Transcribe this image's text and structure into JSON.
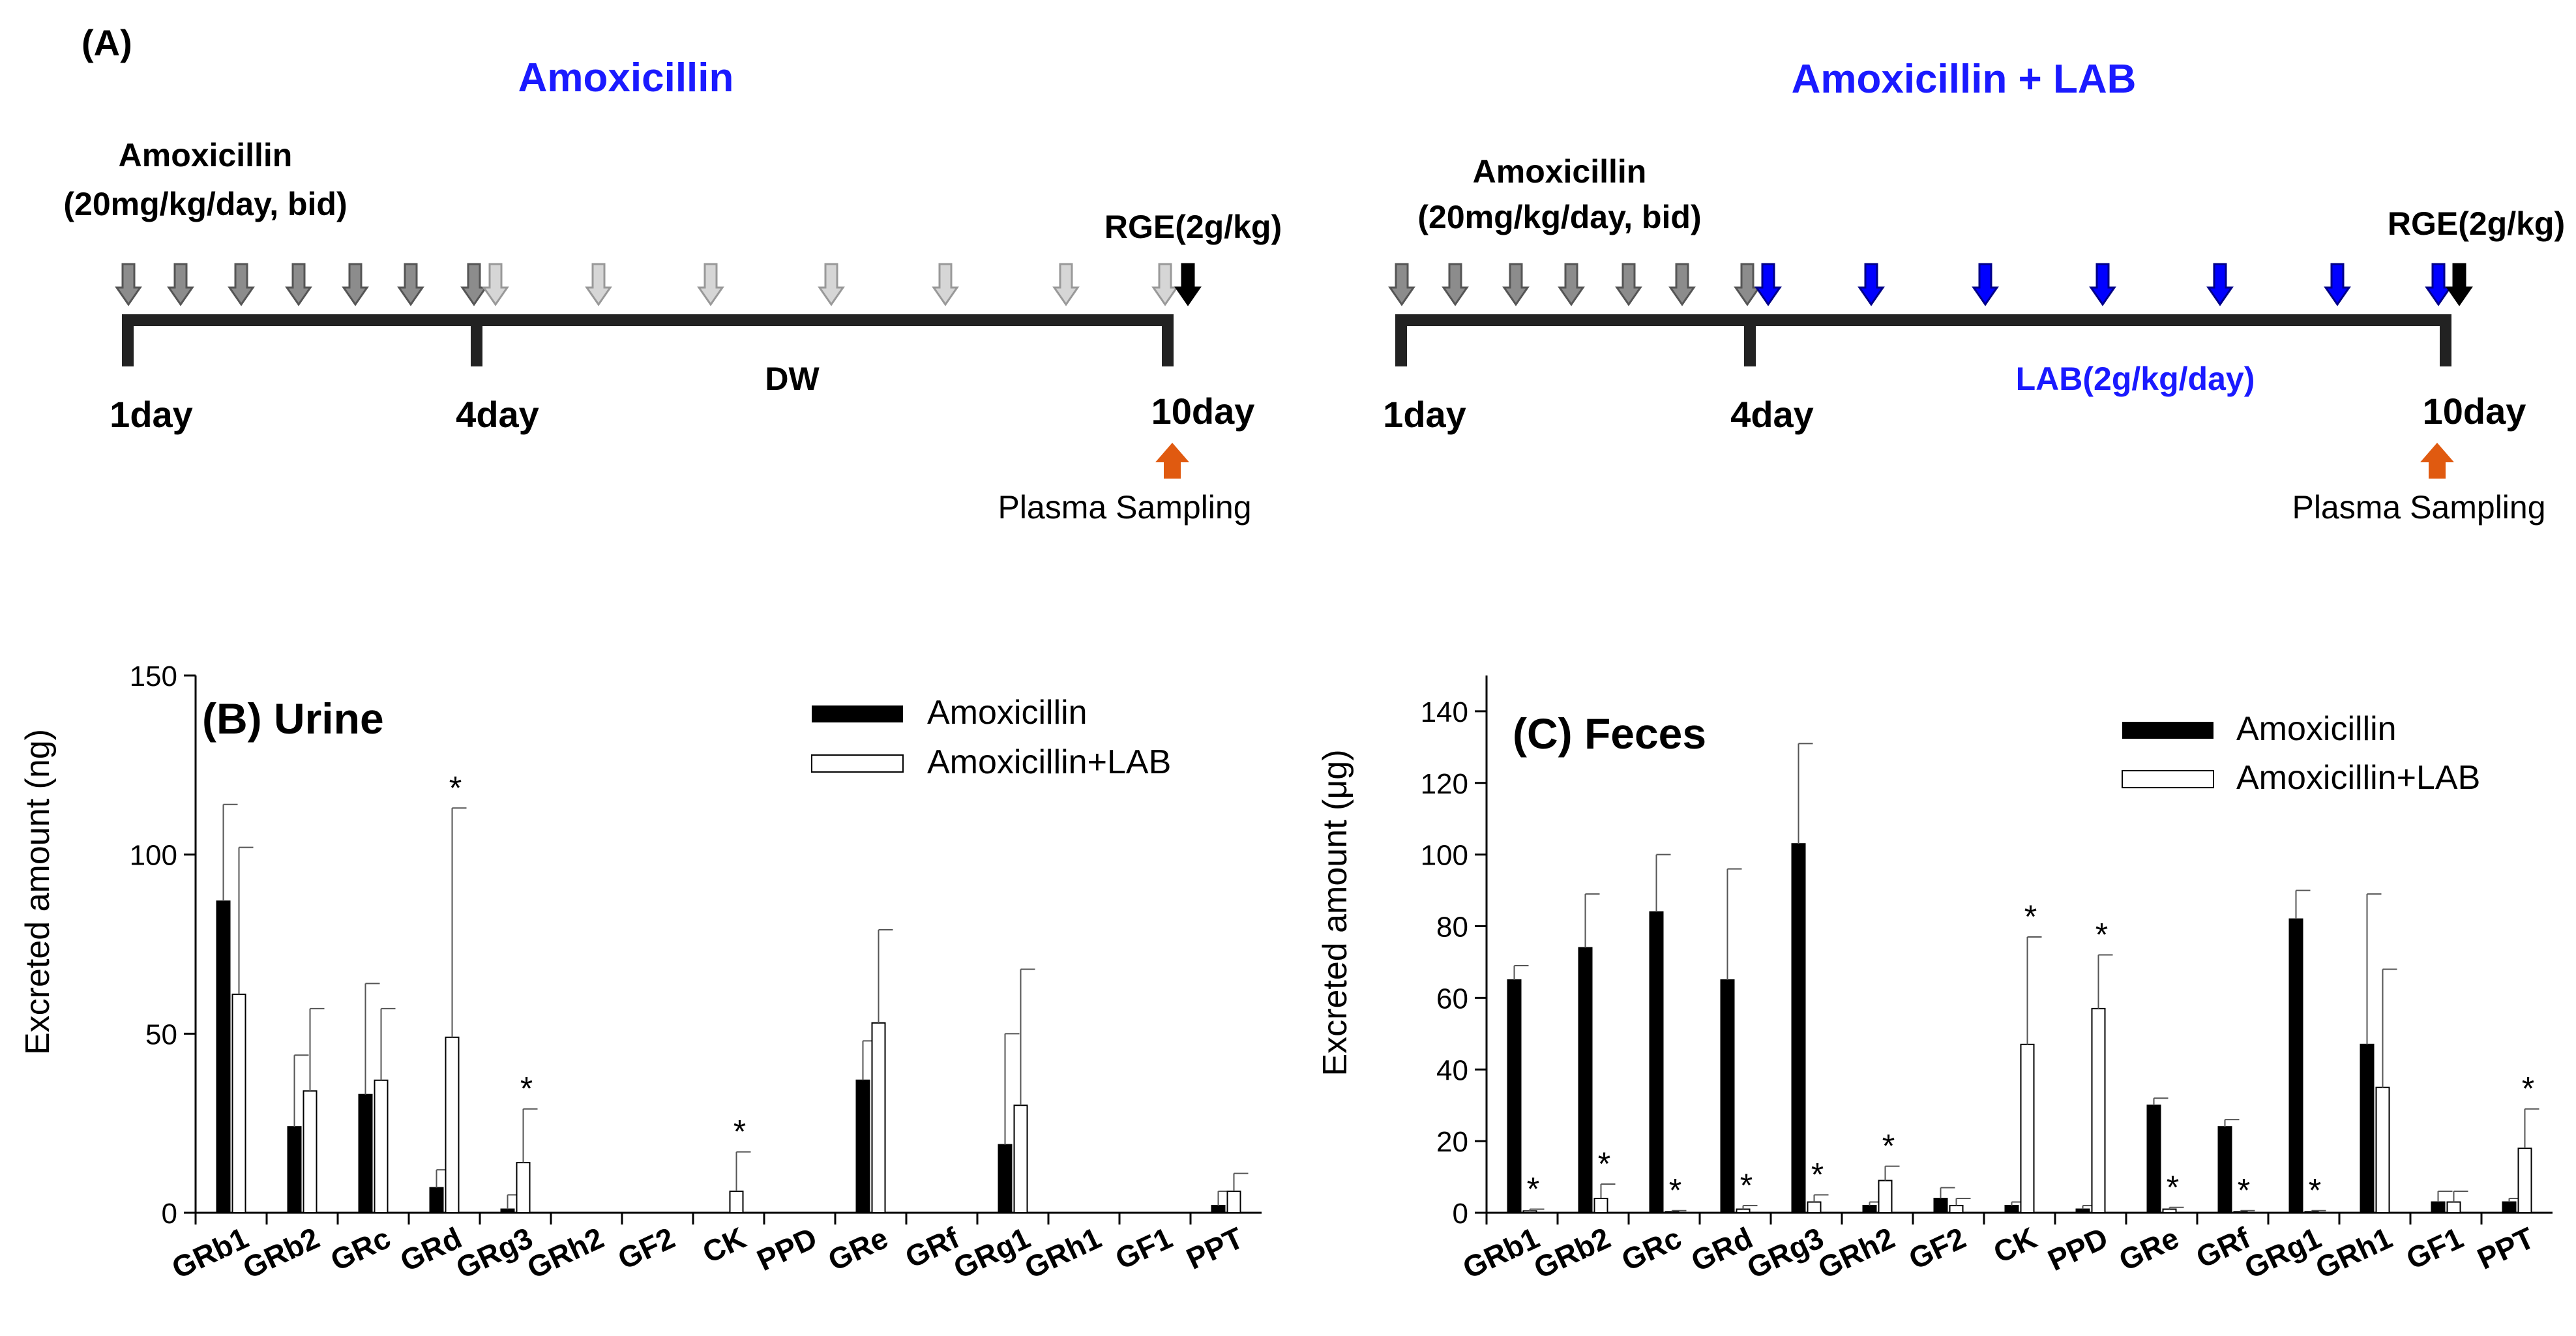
{
  "panel_a": {
    "label": "(A)",
    "left": {
      "title": "Amoxicillin",
      "drug_name": "Amoxicillin",
      "drug_dose": "(20mg/kg/day, bid)",
      "rge": "RGE(2g/kg)",
      "day1": "1day",
      "day4": "4day",
      "day10": "10day",
      "segment_label": "DW",
      "sampling": "Plasma Sampling"
    },
    "right": {
      "title": "Amoxicillin + LAB",
      "drug_name": "Amoxicillin",
      "drug_dose": "(20mg/kg/day, bid)",
      "rge": "RGE(2g/kg)",
      "day1": "1day",
      "day4": "4day",
      "day10": "10day",
      "segment_label": "LAB(2g/kg/day)",
      "sampling": "Plasma Sampling"
    },
    "colors": {
      "title": "#1a1aff",
      "lab_arrow": "#0000ff",
      "sampling_arrow": "#e05a10",
      "amox_arrow": "#8c8c8c",
      "dw_arrow": "#d6d6d6",
      "rge_arrow": "#000000"
    }
  },
  "chart_data": [
    {
      "type": "bar",
      "title": "(B) Urine",
      "ylabel": "Excreted amount (ng)",
      "xlabel": "",
      "ylim": [
        0,
        150
      ],
      "yticks": [
        0,
        50,
        100,
        150
      ],
      "categories": [
        "GRb1",
        "GRb2",
        "GRc",
        "GRd",
        "GRg3",
        "GRh2",
        "GF2",
        "CK",
        "PPD",
        "GRe",
        "GRf",
        "GRg1",
        "GRh1",
        "GF1",
        "PPT"
      ],
      "series": [
        {
          "name": "Amoxicillin",
          "color": "#000000",
          "values": [
            87,
            24,
            33,
            7,
            1,
            0,
            0,
            0,
            0,
            37,
            0,
            19,
            0,
            0,
            2
          ],
          "errors": [
            27,
            20,
            31,
            5,
            4,
            0,
            0,
            0,
            0,
            11,
            0,
            31,
            0,
            0,
            4
          ]
        },
        {
          "name": "Amoxicillin+LAB",
          "color": "#ffffff",
          "values": [
            61,
            34,
            37,
            49,
            14,
            0,
            0,
            6,
            0,
            53,
            0,
            30,
            0,
            0,
            6
          ],
          "errors": [
            41,
            23,
            20,
            64,
            15,
            0,
            0,
            11,
            0,
            26,
            0,
            38,
            0,
            0,
            5
          ]
        }
      ],
      "significance": [
        "",
        "",
        "",
        "*",
        "*",
        "",
        "",
        "*",
        "",
        "",
        "",
        "",
        "",
        "",
        ""
      ],
      "legend_position": "top-right"
    },
    {
      "type": "bar",
      "title": "(C) Feces",
      "ylabel": "Excreted amount (μg)",
      "xlabel": "",
      "ylim": [
        0,
        150
      ],
      "yticks": [
        0,
        20,
        40,
        60,
        80,
        100,
        120,
        140
      ],
      "categories": [
        "GRb1",
        "GRb2",
        "GRc",
        "GRd",
        "GRg3",
        "GRh2",
        "GF2",
        "CK",
        "PPD",
        "GRe",
        "GRf",
        "GRg1",
        "GRh1",
        "GF1",
        "PPT"
      ],
      "series": [
        {
          "name": "Amoxicillin",
          "color": "#000000",
          "values": [
            65,
            74,
            84,
            65,
            103,
            2,
            4,
            2,
            1,
            30,
            24,
            82,
            47,
            3,
            3
          ],
          "errors": [
            4,
            15,
            16,
            31,
            28,
            1,
            3,
            1,
            1,
            2,
            2,
            8,
            42,
            3,
            1
          ]
        },
        {
          "name": "Amoxicillin+LAB",
          "color": "#ffffff",
          "values": [
            0.5,
            4,
            0.3,
            1,
            3,
            9,
            2,
            47,
            57,
            1,
            0.3,
            0.3,
            35,
            3,
            18
          ],
          "errors": [
            0.5,
            4,
            0.3,
            1,
            2,
            4,
            2,
            30,
            15,
            0.5,
            0.3,
            0.3,
            33,
            3,
            11
          ]
        }
      ],
      "significance": [
        "*",
        "*",
        "*",
        "*",
        "*",
        "*",
        "",
        "*",
        "*",
        "*",
        "*",
        "*",
        "",
        "",
        "*"
      ],
      "legend_position": "top-right"
    }
  ]
}
